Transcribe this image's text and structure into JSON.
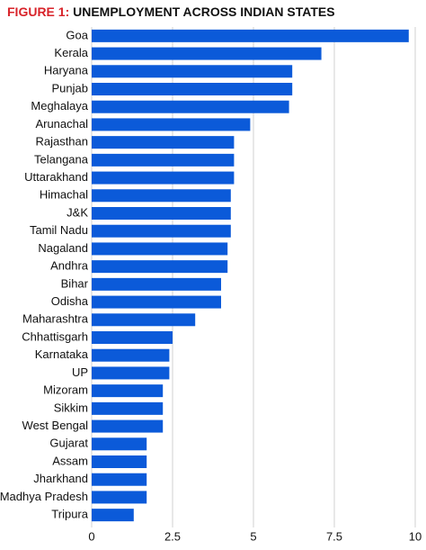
{
  "chart_data": {
    "type": "barh",
    "title_prefix": "FIGURE 1:",
    "title": "UNEMPLOYMENT ACROSS INDIAN STATES",
    "categories": [
      "Goa",
      "Kerala",
      "Haryana",
      "Punjab",
      "Meghalaya",
      "Arunachal",
      "Rajasthan",
      "Telangana",
      "Uttarakhand",
      "Himachal",
      "J&K",
      "Tamil Nadu",
      "Nagaland",
      "Andhra",
      "Bihar",
      "Odisha",
      "Maharashtra",
      "Chhattisgarh",
      "Karnataka",
      "UP",
      "Mizoram",
      "Sikkim",
      "West Bengal",
      "Gujarat",
      "Assam",
      "Jharkhand",
      "Madhya Pradesh",
      "Tripura"
    ],
    "values": [
      9.8,
      7.1,
      6.2,
      6.2,
      6.1,
      4.9,
      4.4,
      4.4,
      4.4,
      4.3,
      4.3,
      4.3,
      4.2,
      4.2,
      4.0,
      4.0,
      3.2,
      2.5,
      2.4,
      2.4,
      2.2,
      2.2,
      2.2,
      1.7,
      1.7,
      1.7,
      1.7,
      1.3
    ],
    "color": "#0b5ad9",
    "title_prefix_color": "#d8232a",
    "xlim": [
      0,
      10
    ],
    "xticks": [
      0,
      2.5,
      5,
      7.5,
      10
    ],
    "grid": true
  }
}
